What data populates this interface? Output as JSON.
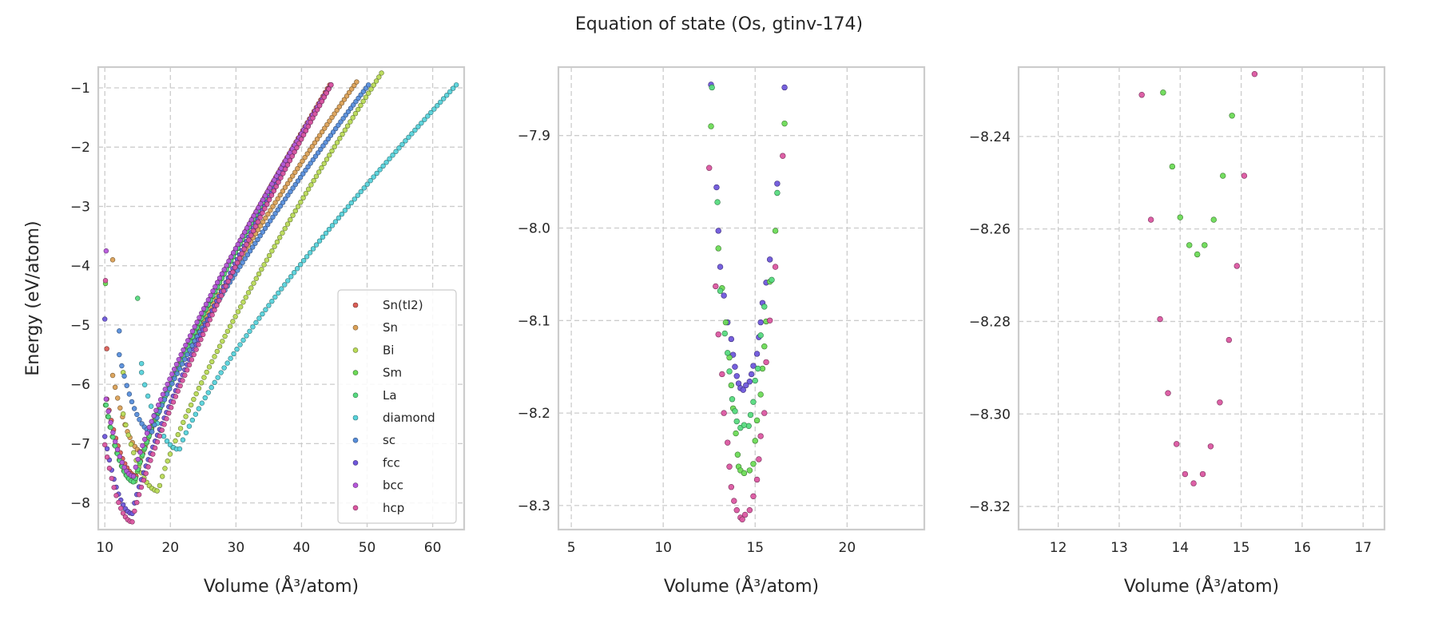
{
  "figure": {
    "title": "Equation of state (Os, gtinv-174)"
  },
  "colors": {
    "Sn(tI2)": "#db5f57",
    "Sn": "#dba157",
    "Bi": "#b9db57",
    "Sm": "#6ddb57",
    "La": "#57db80",
    "diamond": "#57d3db",
    "sc": "#578edb",
    "fcc": "#6f57db",
    "bcc": "#b757db",
    "hcp": "#db57a1"
  },
  "chart_data": [
    {
      "type": "scatter",
      "xlabel": "Volume (Å³/atom)",
      "ylabel": "Energy (eV/atom)",
      "xlim": [
        9,
        64.8
      ],
      "ylim": [
        -8.45,
        -0.65
      ],
      "xticks": [
        10,
        20,
        30,
        40,
        50,
        60
      ],
      "yticks": [
        -8,
        -7,
        -6,
        -5,
        -4,
        -3,
        -2,
        -1
      ],
      "legend": {
        "placement": "lower-right",
        "entries": [
          "Sn(tI2)",
          "Sn",
          "Bi",
          "Sm",
          "La",
          "diamond",
          "sc",
          "fcc",
          "bcc",
          "hcp"
        ]
      },
      "series": [
        {
          "name": "Sn(tI2)",
          "v0": 14.9,
          "e0": -7.55,
          "vmin": 10.3,
          "vmax": 44.3,
          "emax": -0.95,
          "n": 100,
          "spike": [
            10.3,
            -5.4
          ]
        },
        {
          "name": "Sn",
          "v0": 15.9,
          "e0": -7.15,
          "vmin": 11.2,
          "vmax": 48.4,
          "emax": -0.9,
          "n": 100,
          "spike": [
            11.2,
            -3.9
          ]
        },
        {
          "name": "Bi",
          "v0": 18.2,
          "e0": -7.8,
          "vmin": 12.8,
          "vmax": 52.2,
          "emax": -0.75,
          "n": 100,
          "spike": [
            12.8,
            -5.8
          ]
        },
        {
          "name": "Sm",
          "v0": 14.6,
          "e0": -7.65,
          "vmin": 10.1,
          "vmax": 44.5,
          "emax": -0.95,
          "n": 100,
          "spike": [
            10.1,
            -4.3
          ]
        },
        {
          "name": "La",
          "v0": 14.6,
          "e0": -7.65,
          "vmin": 10.2,
          "vmax": 44.5,
          "emax": -0.95,
          "n": 100,
          "spike": [
            15.0,
            -4.55
          ]
        },
        {
          "name": "diamond",
          "v0": 21.4,
          "e0": -7.1,
          "vmin": 15.6,
          "vmax": 63.6,
          "emax": -0.95,
          "n": 100,
          "spike": [
            15.6,
            -5.65
          ]
        },
        {
          "name": "sc",
          "v0": 17.3,
          "e0": -6.8,
          "vmin": 12.2,
          "vmax": 50.2,
          "emax": -0.95,
          "n": 100,
          "spike": [
            12.2,
            -5.1
          ]
        },
        {
          "name": "fcc",
          "v0": 14.2,
          "e0": -8.18,
          "vmin": 10.0,
          "vmax": 44.5,
          "emax": -0.95,
          "n": 100,
          "spike": [
            10.0,
            -4.9
          ]
        },
        {
          "name": "bcc",
          "v0": 14.4,
          "e0": -7.55,
          "vmin": 10.2,
          "vmax": 44.5,
          "emax": -0.95,
          "n": 100,
          "spike": [
            10.2,
            -3.75
          ]
        },
        {
          "name": "hcp",
          "v0": 14.2,
          "e0": -8.32,
          "vmin": 10.0,
          "vmax": 44.5,
          "emax": -0.95,
          "n": 100,
          "spike": [
            10.1,
            -4.25
          ]
        }
      ]
    },
    {
      "type": "scatter",
      "xlabel": "Volume (Å³/atom)",
      "ylabel": "",
      "xlim": [
        4.3,
        24.2
      ],
      "ylim": [
        -8.326,
        -7.826
      ],
      "xticks": [
        5,
        10,
        15,
        20
      ],
      "yticks": [
        -8.3,
        -8.2,
        -8.1,
        -8.0,
        -7.9
      ],
      "series": [
        {
          "name": "fcc",
          "points": [
            [
              12.6,
              -7.845
            ],
            [
              16.6,
              -7.848
            ],
            [
              12.9,
              -7.956
            ],
            [
              16.2,
              -7.952
            ],
            [
              13.0,
              -8.003
            ],
            [
              15.8,
              -8.034
            ],
            [
              13.1,
              -8.042
            ],
            [
              15.6,
              -8.059
            ],
            [
              13.3,
              -8.073
            ],
            [
              15.4,
              -8.081
            ],
            [
              13.5,
              -8.102
            ],
            [
              15.3,
              -8.102
            ],
            [
              13.7,
              -8.12
            ],
            [
              15.2,
              -8.118
            ],
            [
              13.8,
              -8.137
            ],
            [
              15.1,
              -8.136
            ],
            [
              13.9,
              -8.15
            ],
            [
              14.9,
              -8.149
            ],
            [
              14.0,
              -8.16
            ],
            [
              14.8,
              -8.158
            ],
            [
              14.1,
              -8.168
            ],
            [
              14.7,
              -8.166
            ],
            [
              14.2,
              -8.173
            ],
            [
              14.5,
              -8.17
            ],
            [
              14.35,
              -8.175
            ]
          ]
        },
        {
          "name": "Sm",
          "points": [
            [
              12.6,
              -7.89
            ],
            [
              16.6,
              -7.887
            ],
            [
              13.0,
              -8.022
            ],
            [
              16.1,
              -8.003
            ],
            [
              13.2,
              -8.065
            ],
            [
              15.8,
              -8.058
            ],
            [
              13.4,
              -8.102
            ],
            [
              15.6,
              -8.101
            ],
            [
              13.6,
              -8.14
            ],
            [
              15.5,
              -8.128
            ],
            [
              13.7,
              -8.17
            ],
            [
              15.4,
              -8.152
            ],
            [
              13.8,
              -8.195
            ],
            [
              15.3,
              -8.18
            ],
            [
              13.95,
              -8.222
            ],
            [
              15.1,
              -8.208
            ],
            [
              14.05,
              -8.245
            ],
            [
              15.0,
              -8.23
            ],
            [
              14.1,
              -8.258
            ],
            [
              14.9,
              -8.255
            ],
            [
              14.2,
              -8.262
            ],
            [
              14.7,
              -8.262
            ],
            [
              14.4,
              -8.265
            ]
          ]
        },
        {
          "name": "La",
          "points": [
            [
              12.65,
              -7.848
            ],
            [
              16.2,
              -7.962
            ],
            [
              12.95,
              -7.972
            ],
            [
              15.9,
              -8.056
            ],
            [
              13.1,
              -8.068
            ],
            [
              15.5,
              -8.085
            ],
            [
              13.35,
              -8.114
            ],
            [
              15.3,
              -8.116
            ],
            [
              13.5,
              -8.135
            ],
            [
              15.15,
              -8.152
            ],
            [
              13.6,
              -8.155
            ],
            [
              15.0,
              -8.165
            ],
            [
              13.75,
              -8.185
            ],
            [
              14.9,
              -8.188
            ],
            [
              13.9,
              -8.198
            ],
            [
              14.75,
              -8.202
            ],
            [
              14.0,
              -8.209
            ],
            [
              14.65,
              -8.214
            ],
            [
              14.2,
              -8.216
            ],
            [
              14.4,
              -8.213
            ]
          ]
        },
        {
          "name": "hcp",
          "points": [
            [
              12.5,
              -7.935
            ],
            [
              16.5,
              -7.922
            ],
            [
              12.85,
              -8.063
            ],
            [
              16.1,
              -8.042
            ],
            [
              13.0,
              -8.115
            ],
            [
              15.8,
              -8.1
            ],
            [
              13.2,
              -8.158
            ],
            [
              15.6,
              -8.145
            ],
            [
              13.3,
              -8.2
            ],
            [
              15.5,
              -8.2
            ],
            [
              13.5,
              -8.232
            ],
            [
              15.3,
              -8.225
            ],
            [
              13.6,
              -8.258
            ],
            [
              15.2,
              -8.25
            ],
            [
              13.7,
              -8.28
            ],
            [
              15.1,
              -8.272
            ],
            [
              13.85,
              -8.295
            ],
            [
              14.9,
              -8.29
            ],
            [
              14.0,
              -8.305
            ],
            [
              14.7,
              -8.305
            ],
            [
              14.2,
              -8.313
            ],
            [
              14.45,
              -8.31
            ],
            [
              14.3,
              -8.315
            ]
          ]
        }
      ]
    },
    {
      "type": "scatter",
      "xlabel": "Volume (Å³/atom)",
      "ylabel": "",
      "xlim": [
        11.35,
        17.35
      ],
      "ylim": [
        -8.325,
        -8.225
      ],
      "xticks": [
        12,
        13,
        14,
        15,
        16,
        17
      ],
      "yticks": [
        -8.32,
        -8.3,
        -8.28,
        -8.26,
        -8.24
      ],
      "series": [
        {
          "name": "Sm",
          "points": [
            [
              13.72,
              -8.2305
            ],
            [
              14.85,
              -8.2355
            ],
            [
              13.87,
              -8.2465
            ],
            [
              14.7,
              -8.2485
            ],
            [
              14.0,
              -8.2575
            ],
            [
              14.55,
              -8.258
            ],
            [
              14.15,
              -8.2635
            ],
            [
              14.4,
              -8.2635
            ],
            [
              14.28,
              -8.2655
            ]
          ]
        },
        {
          "name": "hcp",
          "points": [
            [
              13.37,
              -8.231
            ],
            [
              15.22,
              -8.2265
            ],
            [
              15.05,
              -8.2485
            ],
            [
              13.52,
              -8.258
            ],
            [
              14.93,
              -8.268
            ],
            [
              13.67,
              -8.2795
            ],
            [
              14.8,
              -8.284
            ],
            [
              13.8,
              -8.2955
            ],
            [
              14.65,
              -8.2975
            ],
            [
              13.94,
              -8.3065
            ],
            [
              14.5,
              -8.307
            ],
            [
              14.08,
              -8.313
            ],
            [
              14.37,
              -8.313
            ],
            [
              14.22,
              -8.315
            ]
          ]
        }
      ]
    }
  ]
}
